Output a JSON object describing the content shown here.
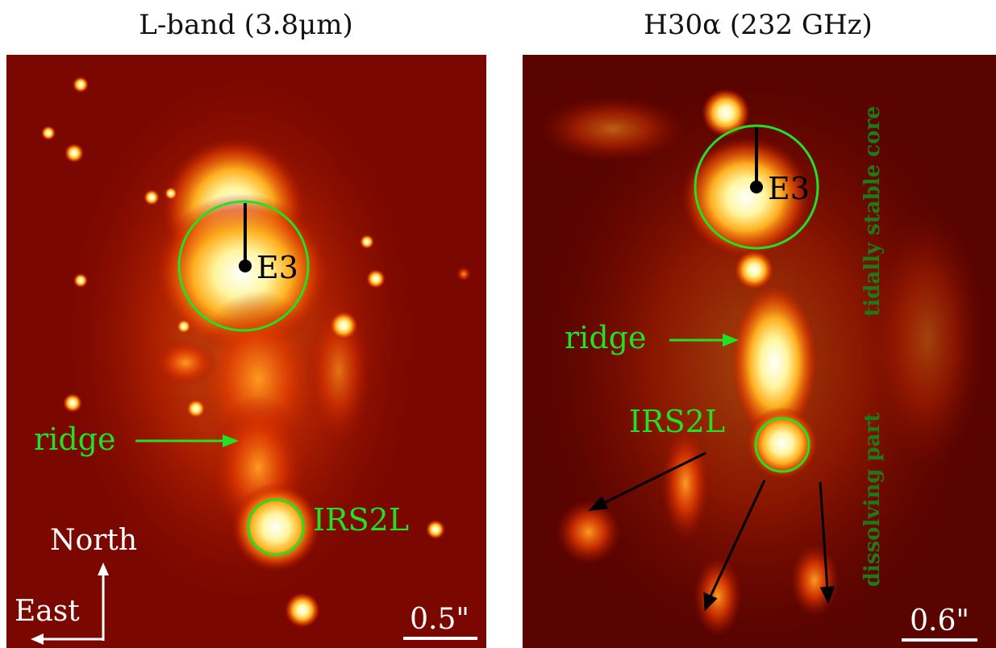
{
  "panels": [
    {
      "title": "L-band (3.8μm)",
      "source_label": "E3",
      "ridge_label": "ridge",
      "irs_label": "IRS2L",
      "north_label": "North",
      "east_label": "East",
      "scale_label": "0.5\""
    },
    {
      "title": "H30α (232 GHz)",
      "source_label": "E3",
      "ridge_label": "ridge",
      "irs_label": "IRS2L",
      "core_label": "tidally stable core",
      "dissolving_label": "dissolving part",
      "scale_label": "0.6\""
    }
  ]
}
